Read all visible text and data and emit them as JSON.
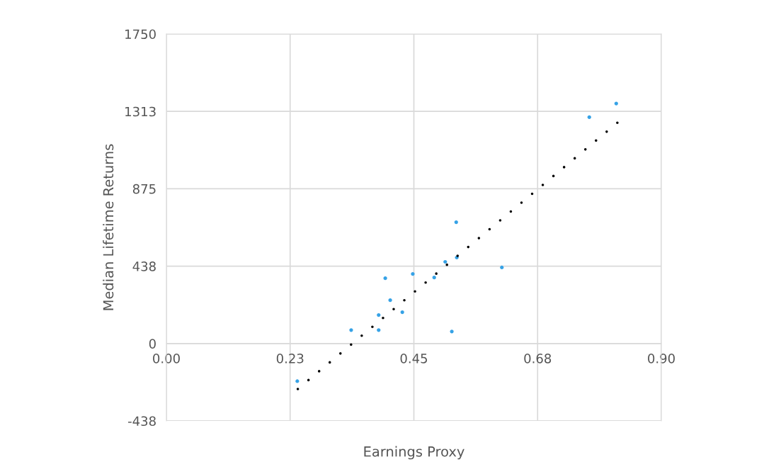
{
  "chart_data": {
    "type": "scatter",
    "xlabel": "Earnings Proxy",
    "ylabel": "Median Lifetime Returns",
    "xlim": [
      0,
      0.9
    ],
    "xticks": [
      {
        "value": 0,
        "label": "0.00"
      },
      {
        "value": 0.225,
        "label": "0.23"
      },
      {
        "value": 0.45,
        "label": "0.45"
      },
      {
        "value": 0.675,
        "label": "0.68"
      },
      {
        "value": 0.9,
        "label": "0.90"
      }
    ],
    "ylim": [
      -437.5,
      1750
    ],
    "yticks": [
      {
        "value": -437.5,
        "label": "-438"
      },
      0,
      {
        "value": 437.5,
        "label": "438"
      },
      875,
      {
        "value": 1312.5,
        "label": "1313"
      },
      1750
    ],
    "grid": true,
    "series": [
      {
        "marker": "circle",
        "color": "#36a2e6",
        "x": [
          0.238,
          0.336,
          0.386,
          0.386,
          0.398,
          0.407,
          0.429,
          0.448,
          0.487,
          0.507,
          0.527,
          0.528,
          0.519,
          0.61,
          0.769,
          0.818
        ],
        "values": [
          -213,
          76,
          76,
          161,
          369,
          245,
          177,
          393,
          373,
          462,
          686,
          486,
          68,
          430,
          1280,
          1357
        ]
      },
      {
        "type": "line",
        "color": "#000000",
        "line_style": "dotted",
        "x": [
          0.239,
          0.82
        ],
        "values": [
          -257,
          1248
        ]
      }
    ]
  }
}
